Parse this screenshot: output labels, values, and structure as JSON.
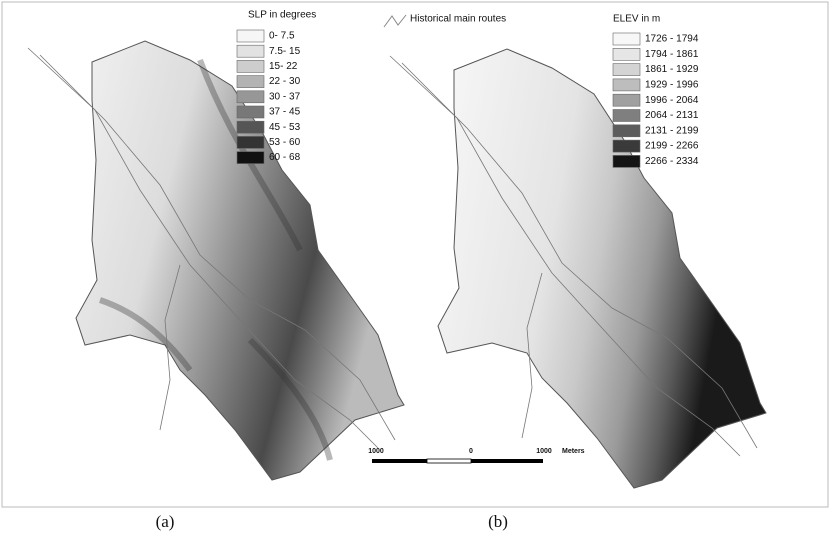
{
  "slope_legend": {
    "title": "SLP in degrees",
    "items": [
      {
        "label": "0- 7.5",
        "color": "#f6f6f6"
      },
      {
        "label": "7.5- 15",
        "color": "#e2e2e2"
      },
      {
        "label": "15- 22",
        "color": "#cdcdcd"
      },
      {
        "label": "22 - 30",
        "color": "#b3b3b3"
      },
      {
        "label": "30 - 37",
        "color": "#979797"
      },
      {
        "label": "37 - 45",
        "color": "#787878"
      },
      {
        "label": "45 - 53",
        "color": "#555555"
      },
      {
        "label": "53 - 60",
        "color": "#333333"
      },
      {
        "label": "60 - 68",
        "color": "#111111"
      }
    ]
  },
  "route_legend": {
    "label": "Historical main routes"
  },
  "elevation_legend": {
    "title": "ELEV in m",
    "items": [
      {
        "label": "1726 - 1794",
        "color": "#f7f7f7"
      },
      {
        "label": "1794 - 1861",
        "color": "#e6e6e6"
      },
      {
        "label": "1861 - 1929",
        "color": "#d4d4d4"
      },
      {
        "label": "1929 - 1996",
        "color": "#bdbdbd"
      },
      {
        "label": "1996 - 2064",
        "color": "#a0a0a0"
      },
      {
        "label": "2064 - 2131",
        "color": "#7f7f7f"
      },
      {
        "label": "2131 - 2199",
        "color": "#5c5c5c"
      },
      {
        "label": "2199 - 2266",
        "color": "#3a3a3a"
      },
      {
        "label": "2266 - 2334",
        "color": "#141414"
      }
    ]
  },
  "scale_bar": {
    "labels": [
      "1000",
      "0",
      "1000"
    ],
    "unit": "Meters"
  },
  "captions": [
    "(a)",
    "(b)"
  ]
}
